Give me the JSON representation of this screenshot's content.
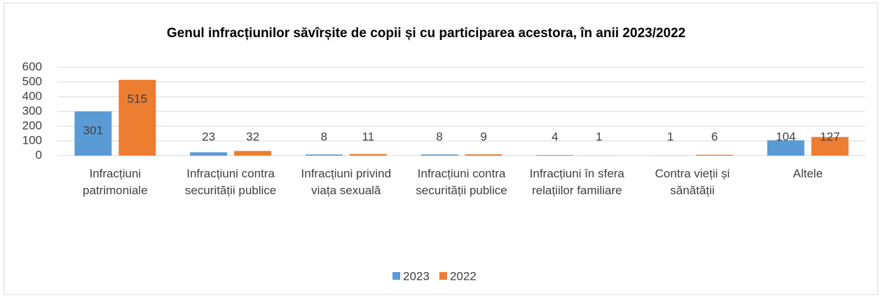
{
  "chart_data": {
    "type": "bar",
    "title": "Genul infracțiunilor săvîrșite de copii și cu participarea acestora, în anii 2023/2022",
    "categories": [
      "Infracțiuni patrimoniale",
      "Infracțiuni contra securității publice",
      "Infracțiuni privind viața sexuală",
      "Infracțiuni contra securității publice",
      "Infracțiuni în sfera relațiilor familiare",
      "Contra vieții și sănătății",
      "Altele"
    ],
    "series": [
      {
        "name": "2023",
        "color": "#5b9bd5",
        "values": [
          301,
          23,
          8,
          8,
          4,
          1,
          104
        ]
      },
      {
        "name": "2022",
        "color": "#ed7d31",
        "values": [
          515,
          32,
          11,
          9,
          1,
          6,
          127
        ]
      }
    ],
    "ylim": [
      0,
      600
    ],
    "yticks": [
      0,
      100,
      200,
      300,
      400,
      500,
      600
    ],
    "grid": true,
    "legend": "bottom"
  }
}
